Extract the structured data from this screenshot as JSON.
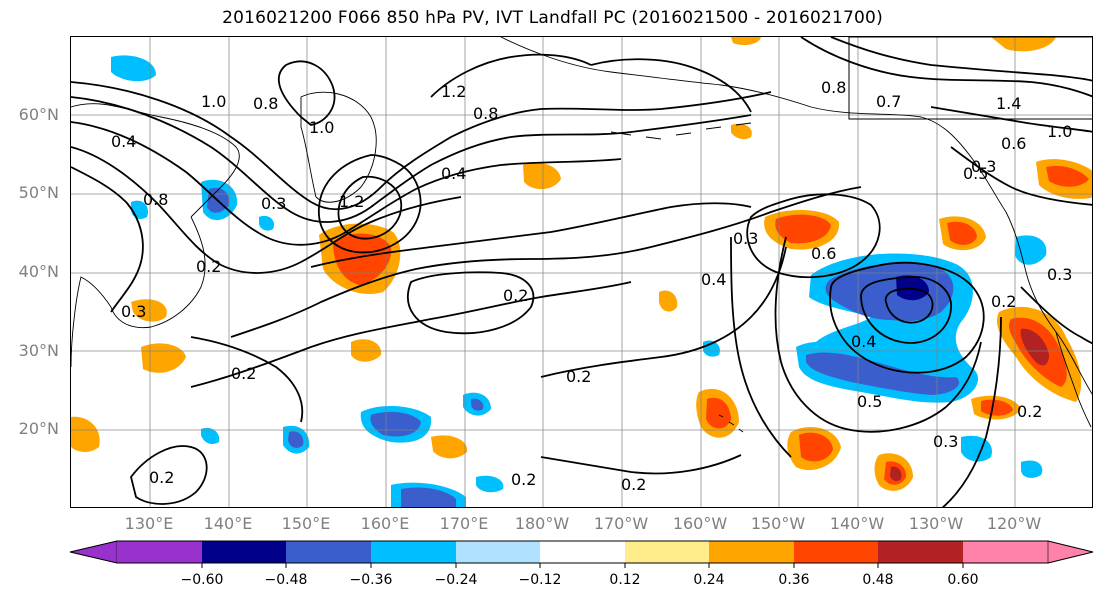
{
  "title": "2016021200 F066 850 hPa PV, IVT Landfall PC (2016021500 - 2016021700)",
  "lat_labels": [
    "60°N",
    "50°N",
    "40°N",
    "30°N",
    "20°N"
  ],
  "lon_labels": [
    "130°E",
    "140°E",
    "150°E",
    "160°E",
    "170°E",
    "180°W",
    "170°W",
    "160°W",
    "150°W",
    "140°W",
    "130°W",
    "120°W"
  ],
  "contour_labels": [
    "1.0",
    "0.8",
    "1.0",
    "0.8",
    "1.2",
    "0.8",
    "0.4",
    "0.8",
    "0.7",
    "1.4",
    "1.0",
    "0.6",
    "0.5",
    "1.2",
    "0.3",
    "0.2",
    "0.3",
    "0.6",
    "0.4",
    "0.2",
    "0.2",
    "0.2",
    "0.2",
    "0.2",
    "0.2",
    "0.4",
    "0.5",
    "0.3",
    "0.2",
    "0.3",
    "0.2",
    "0.3",
    "0.4",
    "0.3"
  ],
  "colorbar": {
    "tick_labels": [
      "−0.60",
      "−0.48",
      "−0.36",
      "−0.24",
      "−0.12",
      "0.12",
      "0.24",
      "0.36",
      "0.48",
      "0.60"
    ],
    "colors": [
      "#9932cc",
      "#00008b",
      "#3a5fcd",
      "#00bfff",
      "#b0e2ff",
      "#ffffff",
      "#ffec8b",
      "#ffa500",
      "#ff4500",
      "#b22222",
      "#ff82ab"
    ]
  },
  "colors": {
    "deep_purple": "#9932cc",
    "navy": "#00008b",
    "royal_blue": "#3a5fcd",
    "deep_sky_blue": "#00bfff",
    "light_blue": "#b0e2ff",
    "light_yellow": "#ffec8b",
    "orange": "#ffa500",
    "orange_red": "#ff4500",
    "firebrick": "#b22222",
    "pink": "#ff82ab",
    "grid": "#808080"
  }
}
